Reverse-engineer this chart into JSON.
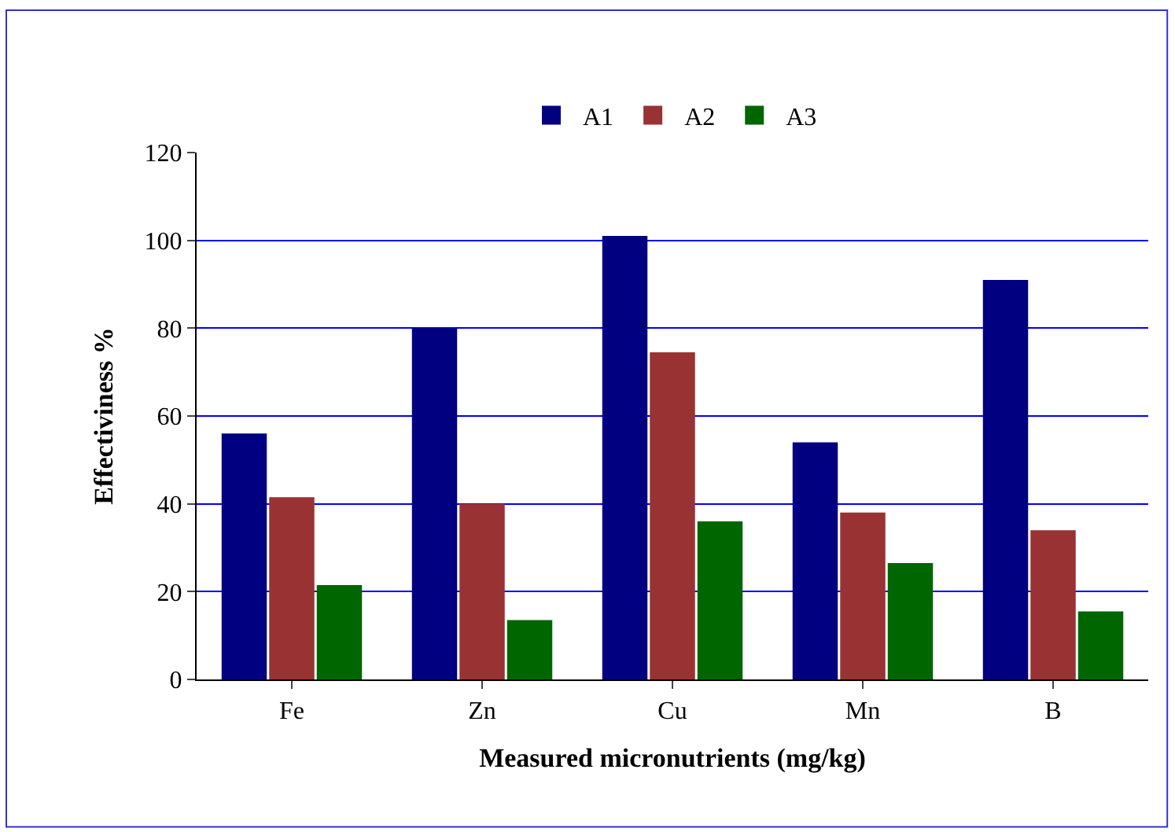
{
  "chart_data": {
    "type": "bar",
    "xlabel": "Measured micronutrients (mg/kg)",
    "ylabel": "Effectiviness %",
    "categories": [
      "Fe",
      "Zn",
      "Cu",
      "Mn",
      "B"
    ],
    "series": [
      {
        "name": "A1",
        "color": "#000080",
        "values": [
          56,
          80,
          101,
          54,
          91
        ]
      },
      {
        "name": "A2",
        "color": "#993333",
        "values": [
          41.5,
          40,
          74.5,
          38,
          34
        ]
      },
      {
        "name": "A3",
        "color": "#006600",
        "values": [
          21.5,
          13.5,
          36,
          26.5,
          15.5
        ]
      }
    ],
    "ylim": [
      0,
      120
    ],
    "yticks": [
      0,
      20,
      40,
      60,
      80,
      100,
      120
    ],
    "grid": "y",
    "legend": "top"
  }
}
